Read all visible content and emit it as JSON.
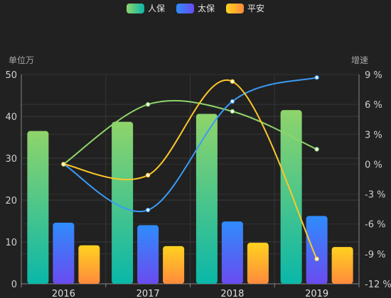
{
  "chart_data": {
    "type": "bar",
    "categories": [
      "2016",
      "2017",
      "2018",
      "2019"
    ],
    "series": [
      {
        "name": "人保",
        "type": "bar",
        "values": [
          36.5,
          38.7,
          40.6,
          41.5
        ],
        "color_top": "#8fd46b",
        "color_bottom": "#0ab7a9"
      },
      {
        "name": "太保",
        "type": "bar",
        "values": [
          14.6,
          14.0,
          14.9,
          16.2
        ],
        "color_top": "#2f8cfb",
        "color_bottom": "#6a4bf0"
      },
      {
        "name": "平安",
        "type": "bar",
        "values": [
          9.2,
          9.0,
          9.8,
          8.8
        ],
        "color_top": "#ffd21f",
        "color_bottom": "#ff8a3d"
      },
      {
        "name": "人保",
        "type": "line",
        "axis": "right",
        "values": [
          0,
          6,
          5.3,
          1.5
        ],
        "color": "#8fd46b"
      },
      {
        "name": "太保",
        "type": "line",
        "axis": "right",
        "values": [
          0,
          -4.6,
          6.3,
          8.7
        ],
        "color": "#3a9bf5"
      },
      {
        "name": "平安",
        "type": "line",
        "axis": "right",
        "values": [
          0,
          -1.1,
          8.3,
          -9.5
        ],
        "color": "#ffc82a"
      }
    ],
    "ylabel": "单位万",
    "y2label": "增速",
    "ylim": [
      0,
      50
    ],
    "y_ticks": [
      "0",
      "10",
      "20",
      "30",
      "40",
      "50"
    ],
    "y2lim": [
      -12,
      9
    ],
    "y2_ticks": [
      "9 %",
      "6 %",
      "3 %",
      "0 %",
      "-3 %",
      "-6 %",
      "-9 %",
      "-12 %"
    ],
    "legend_position": "top-center",
    "grid": true
  }
}
